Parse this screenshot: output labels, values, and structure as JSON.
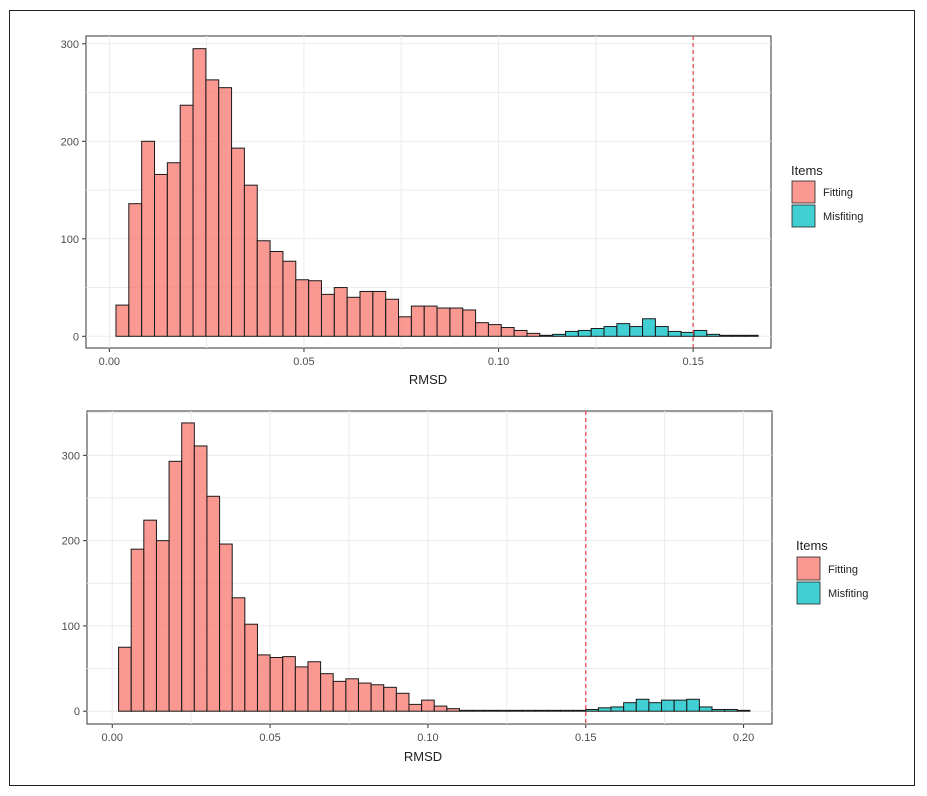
{
  "chart_data": [
    {
      "type": "histogram",
      "xlabel": "RMSD",
      "ylabel": "",
      "xlim": [
        -0.006,
        0.17
      ],
      "ylim": [
        -12,
        308
      ],
      "xticks": [
        0.0,
        0.05,
        0.1,
        0.15
      ],
      "xtick_labels": [
        "0.00",
        "0.05",
        "0.10",
        "0.15"
      ],
      "yticks": [
        0,
        100,
        200,
        300
      ],
      "ytick_labels": [
        "0",
        "100",
        "200",
        "300"
      ],
      "bin_width": 0.0033,
      "cutoff": 0.15,
      "legend": {
        "title": "Items",
        "position": "right",
        "entries": [
          "Fitting",
          "Misfiting"
        ]
      },
      "series": [
        {
          "name": "Fitting",
          "color": "#f8766d",
          "bins": [
            {
              "x0": 0.0017,
              "count": 32
            },
            {
              "x0": 0.005,
              "count": 136
            },
            {
              "x0": 0.0083,
              "count": 200
            },
            {
              "x0": 0.0116,
              "count": 166
            },
            {
              "x0": 0.0149,
              "count": 178
            },
            {
              "x0": 0.0182,
              "count": 237
            },
            {
              "x0": 0.0215,
              "count": 295
            },
            {
              "x0": 0.0248,
              "count": 263
            },
            {
              "x0": 0.0281,
              "count": 255
            },
            {
              "x0": 0.0314,
              "count": 193
            },
            {
              "x0": 0.0347,
              "count": 155
            },
            {
              "x0": 0.038,
              "count": 98
            },
            {
              "x0": 0.0413,
              "count": 87
            },
            {
              "x0": 0.0446,
              "count": 77
            },
            {
              "x0": 0.0479,
              "count": 58
            },
            {
              "x0": 0.0512,
              "count": 57
            },
            {
              "x0": 0.0545,
              "count": 43
            },
            {
              "x0": 0.0578,
              "count": 50
            },
            {
              "x0": 0.0611,
              "count": 40
            },
            {
              "x0": 0.0644,
              "count": 46
            },
            {
              "x0": 0.0677,
              "count": 46
            },
            {
              "x0": 0.071,
              "count": 38
            },
            {
              "x0": 0.0743,
              "count": 20
            },
            {
              "x0": 0.0776,
              "count": 31
            },
            {
              "x0": 0.0809,
              "count": 31
            },
            {
              "x0": 0.0842,
              "count": 29
            },
            {
              "x0": 0.0875,
              "count": 29
            },
            {
              "x0": 0.0908,
              "count": 27
            },
            {
              "x0": 0.0941,
              "count": 14
            },
            {
              "x0": 0.0974,
              "count": 12
            },
            {
              "x0": 0.1007,
              "count": 9
            },
            {
              "x0": 0.104,
              "count": 6
            },
            {
              "x0": 0.1073,
              "count": 3
            },
            {
              "x0": 0.1106,
              "count": 1
            }
          ]
        },
        {
          "name": "Misfiting",
          "color": "#00bfc4",
          "bins": [
            {
              "x0": 0.1139,
              "count": 2
            },
            {
              "x0": 0.1172,
              "count": 5
            },
            {
              "x0": 0.1205,
              "count": 6
            },
            {
              "x0": 0.1238,
              "count": 8
            },
            {
              "x0": 0.1271,
              "count": 10
            },
            {
              "x0": 0.1304,
              "count": 13
            },
            {
              "x0": 0.1337,
              "count": 10
            },
            {
              "x0": 0.137,
              "count": 18
            },
            {
              "x0": 0.1403,
              "count": 10
            },
            {
              "x0": 0.1436,
              "count": 5
            },
            {
              "x0": 0.1469,
              "count": 4
            },
            {
              "x0": 0.1502,
              "count": 6
            },
            {
              "x0": 0.1535,
              "count": 2
            },
            {
              "x0": 0.1568,
              "count": 1
            },
            {
              "x0": 0.1601,
              "count": 1
            },
            {
              "x0": 0.1634,
              "count": 1
            }
          ]
        }
      ]
    },
    {
      "type": "histogram",
      "xlabel": "RMSD",
      "ylabel": "",
      "xlim": [
        -0.008,
        0.209
      ],
      "ylim": [
        -15,
        352
      ],
      "xticks": [
        0.0,
        0.05,
        0.1,
        0.15,
        0.2
      ],
      "xtick_labels": [
        "0.00",
        "0.05",
        "0.10",
        "0.15",
        "0.20"
      ],
      "yticks": [
        0,
        100,
        200,
        300
      ],
      "ytick_labels": [
        "0",
        "100",
        "200",
        "300"
      ],
      "bin_width": 0.004,
      "cutoff": 0.15,
      "legend": {
        "title": "Items",
        "position": "right",
        "entries": [
          "Fitting",
          "Misfiting"
        ]
      },
      "series": [
        {
          "name": "Fitting",
          "color": "#f8766d",
          "bins": [
            {
              "x0": 0.002,
              "count": 75
            },
            {
              "x0": 0.006,
              "count": 190
            },
            {
              "x0": 0.01,
              "count": 224
            },
            {
              "x0": 0.014,
              "count": 200
            },
            {
              "x0": 0.018,
              "count": 293
            },
            {
              "x0": 0.022,
              "count": 338
            },
            {
              "x0": 0.026,
              "count": 311
            },
            {
              "x0": 0.03,
              "count": 252
            },
            {
              "x0": 0.034,
              "count": 196
            },
            {
              "x0": 0.038,
              "count": 133
            },
            {
              "x0": 0.042,
              "count": 102
            },
            {
              "x0": 0.046,
              "count": 66
            },
            {
              "x0": 0.05,
              "count": 63
            },
            {
              "x0": 0.054,
              "count": 64
            },
            {
              "x0": 0.058,
              "count": 52
            },
            {
              "x0": 0.062,
              "count": 58
            },
            {
              "x0": 0.066,
              "count": 44
            },
            {
              "x0": 0.07,
              "count": 35
            },
            {
              "x0": 0.074,
              "count": 38
            },
            {
              "x0": 0.078,
              "count": 33
            },
            {
              "x0": 0.082,
              "count": 31
            },
            {
              "x0": 0.086,
              "count": 28
            },
            {
              "x0": 0.09,
              "count": 21
            },
            {
              "x0": 0.094,
              "count": 8
            },
            {
              "x0": 0.098,
              "count": 13
            },
            {
              "x0": 0.102,
              "count": 6
            },
            {
              "x0": 0.106,
              "count": 3
            },
            {
              "x0": 0.11,
              "count": 1
            },
            {
              "x0": 0.114,
              "count": 1
            },
            {
              "x0": 0.118,
              "count": 1
            },
            {
              "x0": 0.122,
              "count": 1
            },
            {
              "x0": 0.126,
              "count": 1
            },
            {
              "x0": 0.13,
              "count": 1
            },
            {
              "x0": 0.134,
              "count": 1
            },
            {
              "x0": 0.138,
              "count": 1
            },
            {
              "x0": 0.142,
              "count": 1
            },
            {
              "x0": 0.146,
              "count": 1
            }
          ]
        },
        {
          "name": "Misfiting",
          "color": "#00bfc4",
          "bins": [
            {
              "x0": 0.15,
              "count": 2
            },
            {
              "x0": 0.154,
              "count": 4
            },
            {
              "x0": 0.158,
              "count": 5
            },
            {
              "x0": 0.162,
              "count": 10
            },
            {
              "x0": 0.166,
              "count": 14
            },
            {
              "x0": 0.17,
              "count": 10
            },
            {
              "x0": 0.174,
              "count": 13
            },
            {
              "x0": 0.178,
              "count": 13
            },
            {
              "x0": 0.182,
              "count": 14
            },
            {
              "x0": 0.186,
              "count": 5
            },
            {
              "x0": 0.19,
              "count": 2
            },
            {
              "x0": 0.194,
              "count": 2
            },
            {
              "x0": 0.198,
              "count": 1
            }
          ]
        }
      ]
    }
  ]
}
